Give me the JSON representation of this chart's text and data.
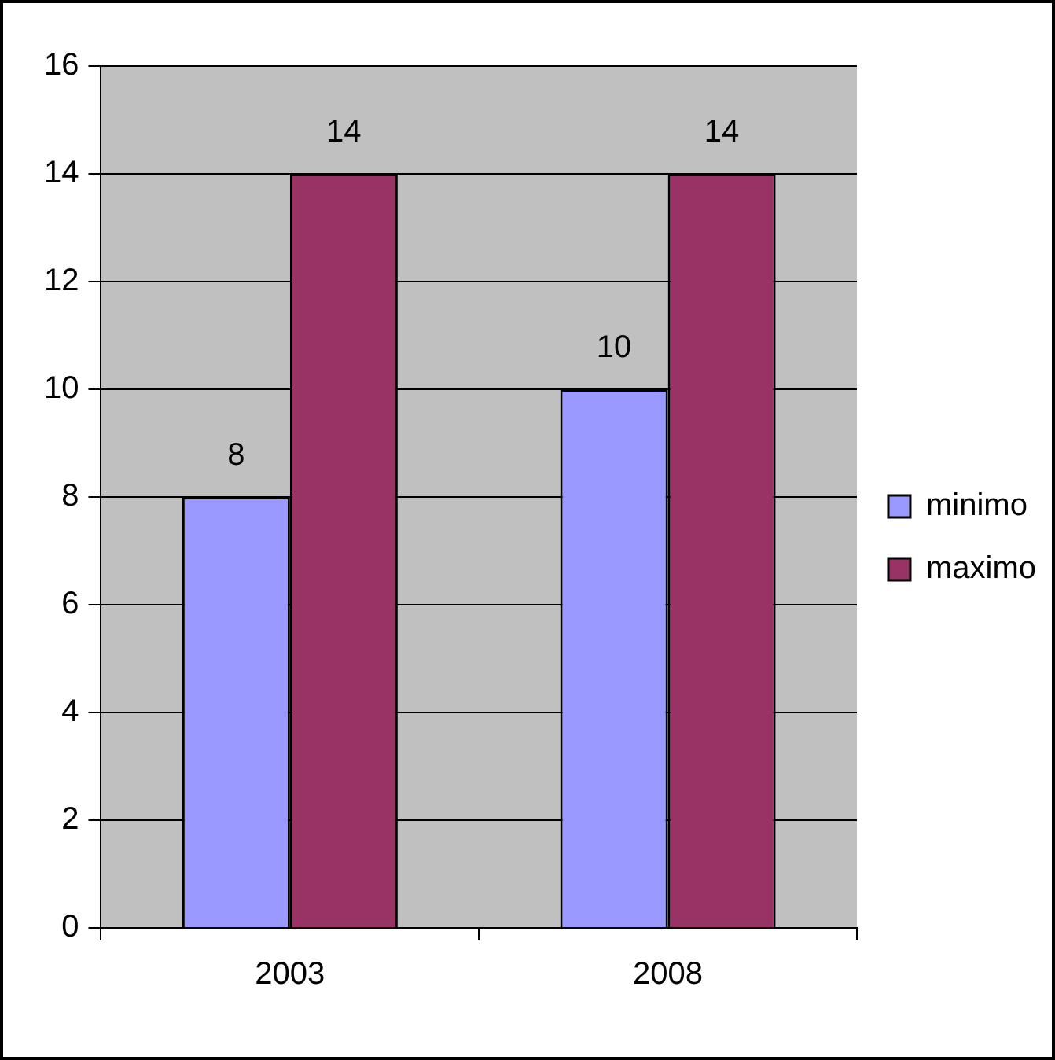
{
  "chart_data": {
    "type": "bar",
    "categories": [
      "2003",
      "2008"
    ],
    "series": [
      {
        "name": "minimo",
        "color": "#9999ff",
        "values": [
          8,
          10
        ]
      },
      {
        "name": "maximo",
        "color": "#993366",
        "values": [
          14,
          14
        ]
      }
    ],
    "ylim": [
      0,
      16
    ],
    "yticks": [
      0,
      2,
      4,
      6,
      8,
      10,
      12,
      14,
      16
    ],
    "grid": "y",
    "legend": "right",
    "data_labels": true
  }
}
